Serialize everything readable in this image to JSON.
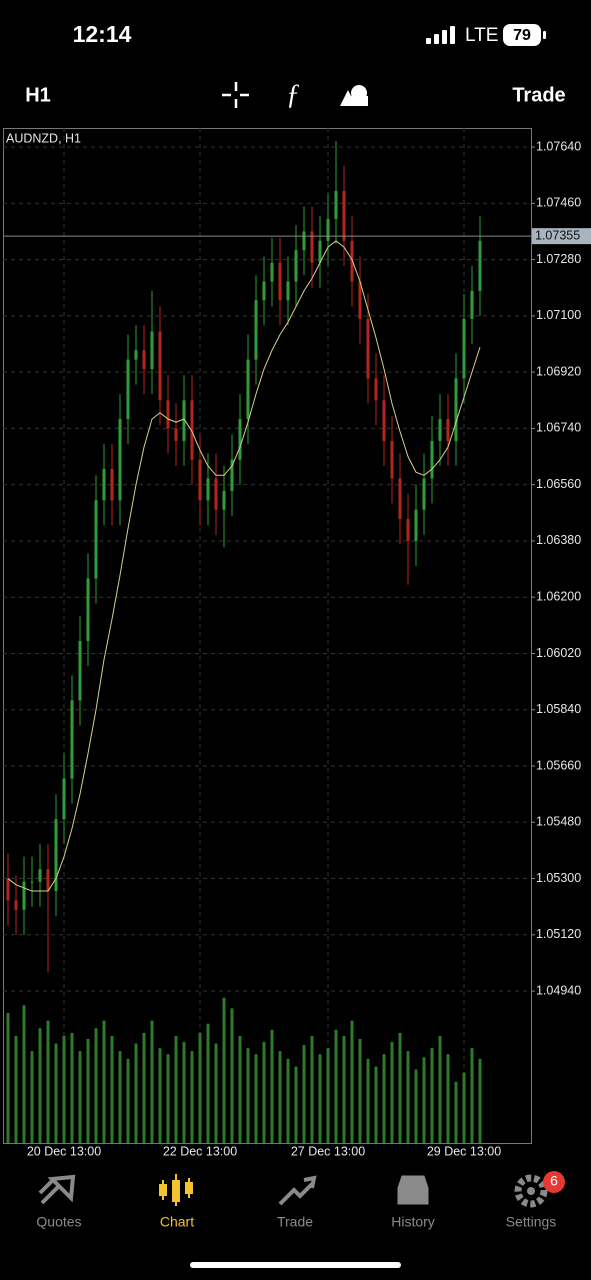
{
  "status_bar": {
    "time": "12:14",
    "network": "LTE",
    "battery": 79
  },
  "toolbar": {
    "timeframe": "H1",
    "trade": "Trade"
  },
  "chart_data": {
    "type": "candlestick",
    "title": "AUDNZD, H1",
    "categories": [
      null,
      null,
      null,
      null,
      null,
      null,
      null,
      "20 Dec 13:00",
      null,
      null,
      null,
      null,
      null,
      null,
      null,
      null,
      null,
      null,
      null,
      null,
      null,
      null,
      null,
      null,
      "22 Dec 13:00",
      null,
      null,
      null,
      null,
      null,
      null,
      null,
      null,
      null,
      null,
      null,
      null,
      null,
      null,
      null,
      "27 Dec 13:00",
      null,
      null,
      null,
      null,
      null,
      null,
      null,
      null,
      null,
      null,
      null,
      null,
      null,
      null,
      null,
      null,
      "29 Dec 13:00",
      null,
      null
    ],
    "open": [
      1.053,
      1.0523,
      1.052,
      1.0529,
      1.0529,
      1.0533,
      1.0526,
      1.0549,
      1.0562,
      1.0587,
      1.0606,
      1.0626,
      1.0651,
      1.0661,
      1.0651,
      1.0677,
      1.0696,
      1.0699,
      1.0693,
      1.0705,
      1.0683,
      1.0674,
      1.067,
      1.0683,
      1.0664,
      1.0651,
      1.0658,
      1.0648,
      1.0654,
      1.0664,
      1.0677,
      1.0696,
      1.0715,
      1.0721,
      1.0727,
      1.0715,
      1.0721,
      1.0731,
      1.0737,
      1.0727,
      1.0734,
      1.0741,
      1.075,
      1.0734,
      1.0721,
      1.0709,
      1.069,
      1.0683,
      1.067,
      1.0658,
      1.0645,
      1.0638,
      1.0648,
      1.0658,
      1.067,
      1.0677,
      1.067,
      1.069,
      1.0709,
      1.0718
    ],
    "high": [
      1.0538,
      1.0531,
      1.0537,
      1.0537,
      1.0541,
      1.0541,
      1.0557,
      1.057,
      1.0595,
      1.0614,
      1.0634,
      1.0659,
      1.0669,
      1.0669,
      1.0685,
      1.0704,
      1.0707,
      1.0707,
      1.0718,
      1.0713,
      1.0691,
      1.0682,
      1.0691,
      1.0691,
      1.0672,
      1.0666,
      1.0666,
      1.0662,
      1.0672,
      1.0685,
      1.0704,
      1.0723,
      1.0729,
      1.0735,
      1.0735,
      1.0729,
      1.0739,
      1.0745,
      1.0745,
      1.0742,
      1.0749,
      1.0766,
      1.0758,
      1.0742,
      1.0729,
      1.0717,
      1.0698,
      1.0691,
      1.0678,
      1.0666,
      1.0653,
      1.0656,
      1.0666,
      1.0678,
      1.0685,
      1.0685,
      1.0698,
      1.0717,
      1.0726,
      1.0742
    ],
    "low": [
      1.0515,
      1.0512,
      1.0512,
      1.0521,
      1.0521,
      1.05,
      1.0518,
      1.0541,
      1.0554,
      1.0579,
      1.0598,
      1.0618,
      1.0643,
      1.0643,
      1.0643,
      1.0669,
      1.0688,
      1.0685,
      1.0685,
      1.0675,
      1.0666,
      1.0662,
      1.0662,
      1.0656,
      1.0643,
      1.0643,
      1.064,
      1.0636,
      1.0646,
      1.0656,
      1.0669,
      1.0688,
      1.0707,
      1.0713,
      1.0707,
      1.0707,
      1.0713,
      1.0723,
      1.0719,
      1.0719,
      1.0726,
      1.0733,
      1.0726,
      1.0713,
      1.0701,
      1.0682,
      1.0675,
      1.0662,
      1.065,
      1.0637,
      1.0624,
      1.063,
      1.064,
      1.065,
      1.0662,
      1.0662,
      1.0662,
      1.0682,
      1.0701,
      1.071
    ],
    "close": [
      1.0523,
      1.052,
      1.0529,
      1.0529,
      1.0533,
      1.0526,
      1.0549,
      1.0562,
      1.0587,
      1.0606,
      1.0626,
      1.0651,
      1.0661,
      1.0651,
      1.0677,
      1.0696,
      1.0699,
      1.0693,
      1.0705,
      1.0683,
      1.0674,
      1.067,
      1.0683,
      1.0664,
      1.0651,
      1.0658,
      1.0648,
      1.0654,
      1.0664,
      1.0677,
      1.0696,
      1.0715,
      1.0721,
      1.0727,
      1.0715,
      1.0721,
      1.0731,
      1.0737,
      1.0727,
      1.0734,
      1.0741,
      1.075,
      1.0734,
      1.0721,
      1.0709,
      1.069,
      1.0683,
      1.067,
      1.0658,
      1.0645,
      1.0638,
      1.0648,
      1.0658,
      1.067,
      1.0677,
      1.067,
      1.069,
      1.0709,
      1.0718,
      1.0734
    ],
    "up_color": "#2f9e3a",
    "down_color": "#b3261e",
    "ma": {
      "color": "#d9d08c",
      "values": [
        1.053,
        1.0528,
        1.0527,
        1.0526,
        1.0526,
        1.0526,
        1.053,
        1.0537,
        1.0546,
        1.0557,
        1.057,
        1.0584,
        1.06,
        1.0613,
        1.0627,
        1.0642,
        1.0656,
        1.0668,
        1.0677,
        1.0679,
        1.0677,
        1.0676,
        1.0677,
        1.0673,
        1.0667,
        1.0662,
        1.0659,
        1.0659,
        1.0662,
        1.0668,
        1.0676,
        1.0685,
        1.0693,
        1.0699,
        1.0704,
        1.0708,
        1.0713,
        1.0718,
        1.0722,
        1.0727,
        1.0732,
        1.0734,
        1.0732,
        1.0728,
        1.0721,
        1.0712,
        1.0703,
        1.0693,
        1.0682,
        1.0673,
        1.0665,
        1.066,
        1.0659,
        1.0661,
        1.0664,
        1.0668,
        1.0676,
        1.0684,
        1.0692,
        1.07
      ]
    },
    "volume": {
      "color": "#2c7a2c",
      "vlim": [
        0,
        100
      ],
      "values": [
        85,
        70,
        90,
        60,
        75,
        80,
        65,
        70,
        72,
        60,
        68,
        75,
        80,
        70,
        60,
        55,
        65,
        72,
        80,
        62,
        58,
        70,
        66,
        60,
        72,
        78,
        65,
        95,
        88,
        70,
        62,
        58,
        66,
        74,
        60,
        55,
        50,
        64,
        70,
        58,
        62,
        74,
        70,
        80,
        68,
        55,
        50,
        58,
        66,
        72,
        60,
        48,
        56,
        62,
        70,
        58,
        40,
        46,
        62,
        55
      ]
    },
    "ylim": [
      1.04454,
      1.07701
    ],
    "yticks": [
      {
        "value": 1.0764,
        "label": "1.07640"
      },
      {
        "value": 1.0746,
        "label": "1.07460"
      },
      {
        "value": 1.0728,
        "label": "1.07280"
      },
      {
        "value": 1.071,
        "label": "1.07100"
      },
      {
        "value": 1.0692,
        "label": "1.06920"
      },
      {
        "value": 1.0674,
        "label": "1.06740"
      },
      {
        "value": 1.0656,
        "label": "1.06560"
      },
      {
        "value": 1.0638,
        "label": "1.06380"
      },
      {
        "value": 1.062,
        "label": "1.06200"
      },
      {
        "value": 1.0602,
        "label": "1.06020"
      },
      {
        "value": 1.0584,
        "label": "1.05840"
      },
      {
        "value": 1.0566,
        "label": "1.05660"
      },
      {
        "value": 1.0548,
        "label": "1.05480"
      },
      {
        "value": 1.053,
        "label": "1.05300"
      },
      {
        "value": 1.0512,
        "label": "1.05120"
      },
      {
        "value": 1.0494,
        "label": "1.04940"
      }
    ],
    "current_price": 1.07355,
    "grid": true
  },
  "tab_bar": {
    "tabs": [
      "Quotes",
      "Chart",
      "Trade",
      "History",
      "Settings"
    ],
    "active": 1,
    "badge": 6
  }
}
